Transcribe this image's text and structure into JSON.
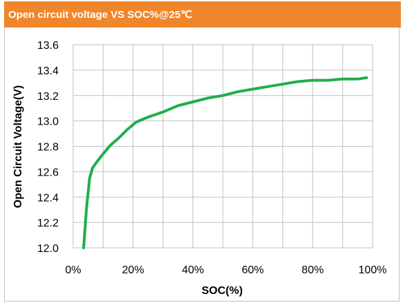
{
  "header": {
    "title": "Open circuit voltage VS SOC%@25℃"
  },
  "colors": {
    "header_bg": "#f0862b",
    "line": "#1fae4b",
    "grid": "#bfbfbf"
  },
  "chart_data": {
    "type": "line",
    "title": "Open circuit voltage VS SOC%@25℃",
    "xlabel": "SOC(%)",
    "ylabel": "Open Circuit Voltage(V)",
    "xlim": [
      0,
      100
    ],
    "ylim": [
      12.0,
      13.6
    ],
    "x_ticks": [
      0,
      20,
      40,
      60,
      80,
      100
    ],
    "x_tick_labels": [
      "0%",
      "20%",
      "40%",
      "60%",
      "80%",
      "100%"
    ],
    "y_ticks": [
      12.0,
      12.2,
      12.4,
      12.6,
      12.8,
      13.0,
      13.2,
      13.4,
      13.6
    ],
    "y_tick_labels": [
      "12.0",
      "12.2",
      "12.4",
      "12.6",
      "12.8",
      "13.0",
      "13.2",
      "13.4",
      "13.6"
    ],
    "grid": true,
    "series": [
      {
        "x": [
          3.5,
          4.5,
          5.5,
          6.5,
          8,
          10,
          12.5,
          15,
          18,
          21,
          25,
          30,
          35,
          40,
          45,
          50,
          55,
          60,
          65,
          70,
          75,
          80,
          85,
          90,
          95,
          98
        ],
        "values": [
          12.0,
          12.32,
          12.55,
          12.63,
          12.68,
          12.74,
          12.81,
          12.86,
          12.93,
          12.99,
          13.03,
          13.07,
          13.12,
          13.15,
          13.18,
          13.2,
          13.23,
          13.25,
          13.27,
          13.29,
          13.31,
          13.32,
          13.32,
          13.33,
          13.33,
          13.34
        ]
      }
    ]
  }
}
